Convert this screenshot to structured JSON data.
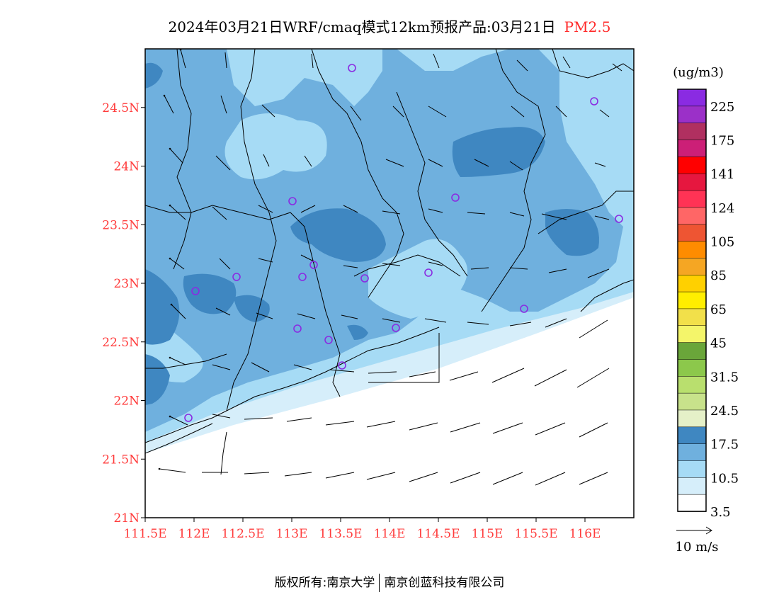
{
  "title": {
    "main": "2024年03月21日WRF/cmaq模式12km预报产品:03月21日",
    "species": "PM2.5"
  },
  "map": {
    "lat_labels": [
      "24.5N",
      "24N",
      "23.5N",
      "23N",
      "22.5N",
      "22N",
      "21.5N",
      "21N"
    ],
    "lon_labels": [
      "111.5E",
      "112E",
      "112.5E",
      "113E",
      "113.5E",
      "114E",
      "114.5E",
      "115E",
      "115.5E",
      "116E"
    ],
    "lat_range": [
      21,
      25
    ],
    "lon_range": [
      111.5,
      116.5
    ],
    "fill_colors": {
      "0-3.5": "#ffffff",
      "3.5-10.5": "#d6eefa",
      "10.5-17.5": "#a6dbf5",
      "17.5-24.5": "#6fb0de",
      "24.5+": "#3f87c1"
    },
    "station_marker_color": "#8a2be2"
  },
  "colorbar": {
    "unit": "(ug/m3)",
    "labels": [
      "225",
      "175",
      "141",
      "124",
      "105",
      "85",
      "65",
      "45",
      "31.5",
      "24.5",
      "17.5",
      "10.5",
      "3.5"
    ],
    "colors": [
      "#8a2be2",
      "#9b30c8",
      "#b03060",
      "#cc1f77",
      "#ff0000",
      "#e6173f",
      "#ff3355",
      "#ff6666",
      "#ee5533",
      "#ff8c00",
      "#f5a623",
      "#ffd000",
      "#ffee00",
      "#f2e04a",
      "#f4f56a",
      "#6aa63a",
      "#8cc84b",
      "#b9df6e",
      "#c8e28b",
      "#e5f0c8",
      "#3f87c1",
      "#6fb0de",
      "#a6dbf5",
      "#d6eefa",
      "#ffffff"
    ]
  },
  "wind_legend": {
    "label": "10 m/s"
  },
  "footer": {
    "left": "版权所有:南京大学",
    "right": "南京创蓝科技有限公司"
  }
}
